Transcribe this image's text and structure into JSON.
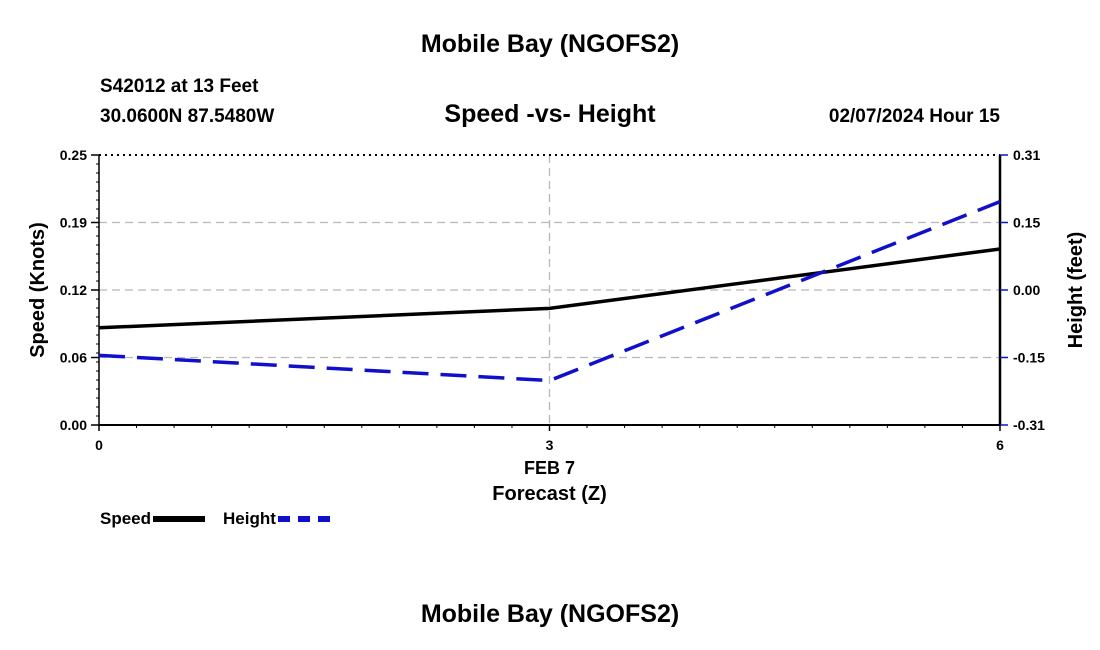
{
  "chart_data": {
    "type": "line",
    "title": "Mobile Bay (NGOFS2)",
    "subtitle": "Speed -vs- Height",
    "station": "S42012 at 13 Feet",
    "coordinates": "30.0600N  87.5480W",
    "datetime": "02/07/2024 Hour 15",
    "xlabel": "Forecast (Z)",
    "x_date_label": "FEB 7",
    "x": [
      0,
      3,
      6
    ],
    "x_ticks": [
      "0",
      "3",
      "6"
    ],
    "xlim": [
      0,
      6
    ],
    "ylabel_left": "Speed (Knots)",
    "ylabel_right": "Height (feet)",
    "ylim_left": [
      0.0,
      0.25
    ],
    "ylim_right": [
      -0.31,
      0.31
    ],
    "left_ticks": [
      "0.00",
      "0.06",
      "0.12",
      "0.19",
      "0.25"
    ],
    "right_ticks": [
      "-0.31",
      "-0.15",
      "0.00",
      "0.15",
      "0.31"
    ],
    "series": [
      {
        "name": "Speed",
        "axis": "left",
        "style": "solid",
        "color": "#000000",
        "values": [
          0.09,
          0.108,
          0.163
        ]
      },
      {
        "name": "Height",
        "axis": "right",
        "style": "dashed",
        "color": "#1010cc",
        "values": [
          -0.15,
          -0.208,
          0.203
        ]
      }
    ],
    "grid": true,
    "legend_position": "bottom-left"
  },
  "footer_title": "Mobile Bay (NGOFS2)"
}
